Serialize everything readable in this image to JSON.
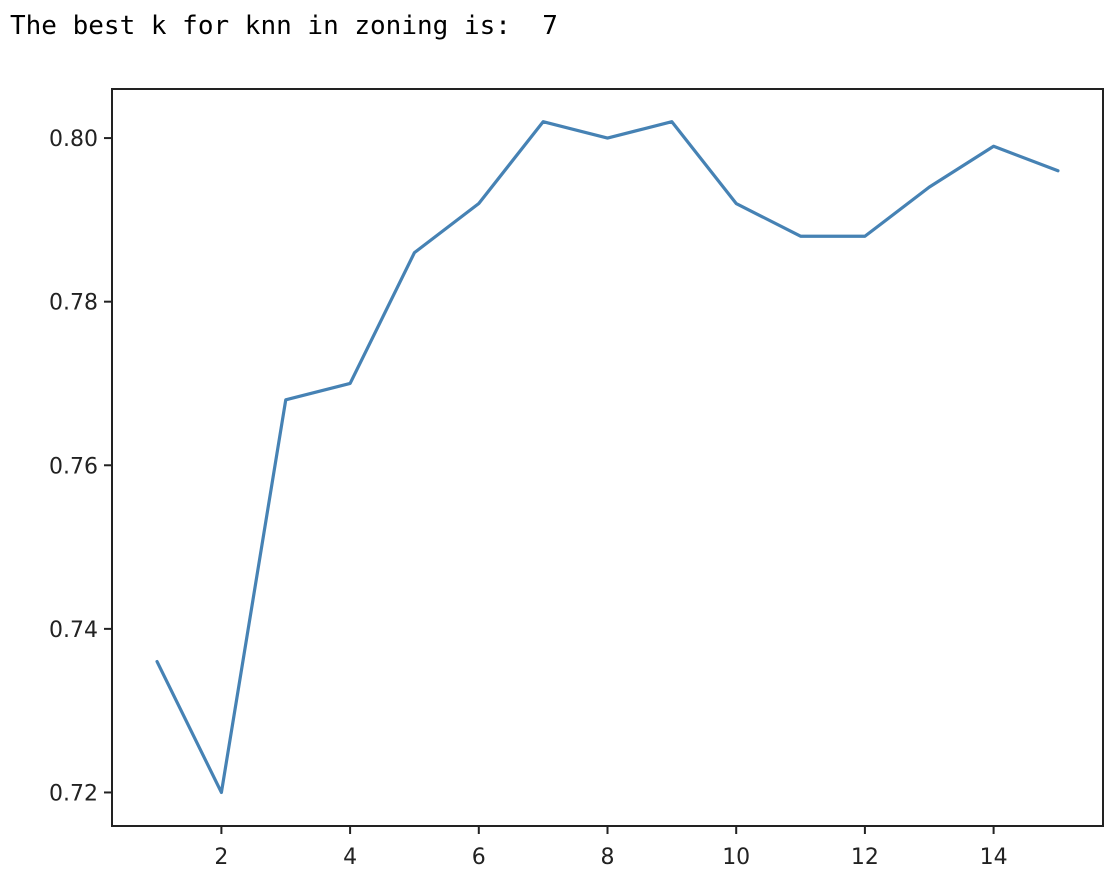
{
  "console": {
    "output_text": "The best k for knn in zoning is:  7"
  },
  "chart_data": {
    "type": "line",
    "title": "",
    "xlabel": "",
    "ylabel": "",
    "x": [
      1,
      2,
      3,
      4,
      5,
      6,
      7,
      8,
      9,
      10,
      11,
      12,
      13,
      14,
      15
    ],
    "series": [
      {
        "values": [
          0.736,
          0.72,
          0.768,
          0.77,
          0.786,
          0.792,
          0.802,
          0.8,
          0.802,
          0.792,
          0.788,
          0.788,
          0.794,
          0.799,
          0.796
        ],
        "color": "#4682b4"
      }
    ],
    "xlim": [
      0.3,
      15.7
    ],
    "ylim": [
      0.7159,
      0.806
    ],
    "x_ticks": [
      2,
      4,
      6,
      8,
      10,
      12,
      14
    ],
    "x_tick_labels": [
      "2",
      "4",
      "6",
      "8",
      "10",
      "12",
      "14"
    ],
    "y_ticks": [
      0.72,
      0.74,
      0.76,
      0.78,
      0.8
    ],
    "y_tick_labels": [
      "0.72",
      "0.74",
      "0.76",
      "0.78",
      "0.80"
    ],
    "grid": false,
    "legend": "none"
  }
}
